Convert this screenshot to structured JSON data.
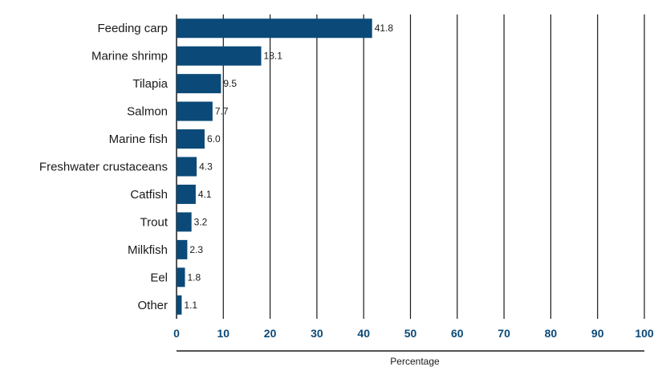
{
  "chart_data": {
    "type": "bar",
    "orientation": "horizontal",
    "categories": [
      "Feeding carp",
      "Marine shrimp",
      "Tilapia",
      "Salmon",
      "Marine fish",
      "Freshwater crustaceans",
      "Catfish",
      "Trout",
      "Milkfish",
      "Eel",
      "Other"
    ],
    "values": [
      41.8,
      18.1,
      9.5,
      7.7,
      6.0,
      4.3,
      4.1,
      3.2,
      2.3,
      1.8,
      1.1
    ],
    "value_labels": [
      "41.8",
      "18.1",
      "9.5",
      "7.7",
      "6.0",
      "4.3",
      "4.1",
      "3.2",
      "2.3",
      "1.8",
      "1.1"
    ],
    "xlim": [
      0,
      100
    ],
    "xticks": [
      "0",
      "10",
      "20",
      "30",
      "40",
      "50",
      "60",
      "70",
      "80",
      "90",
      "100"
    ],
    "xlabel": "Percentage",
    "grid": "vertical",
    "bar_color": "#0b4a78",
    "tick_color": "#0b4a78"
  }
}
